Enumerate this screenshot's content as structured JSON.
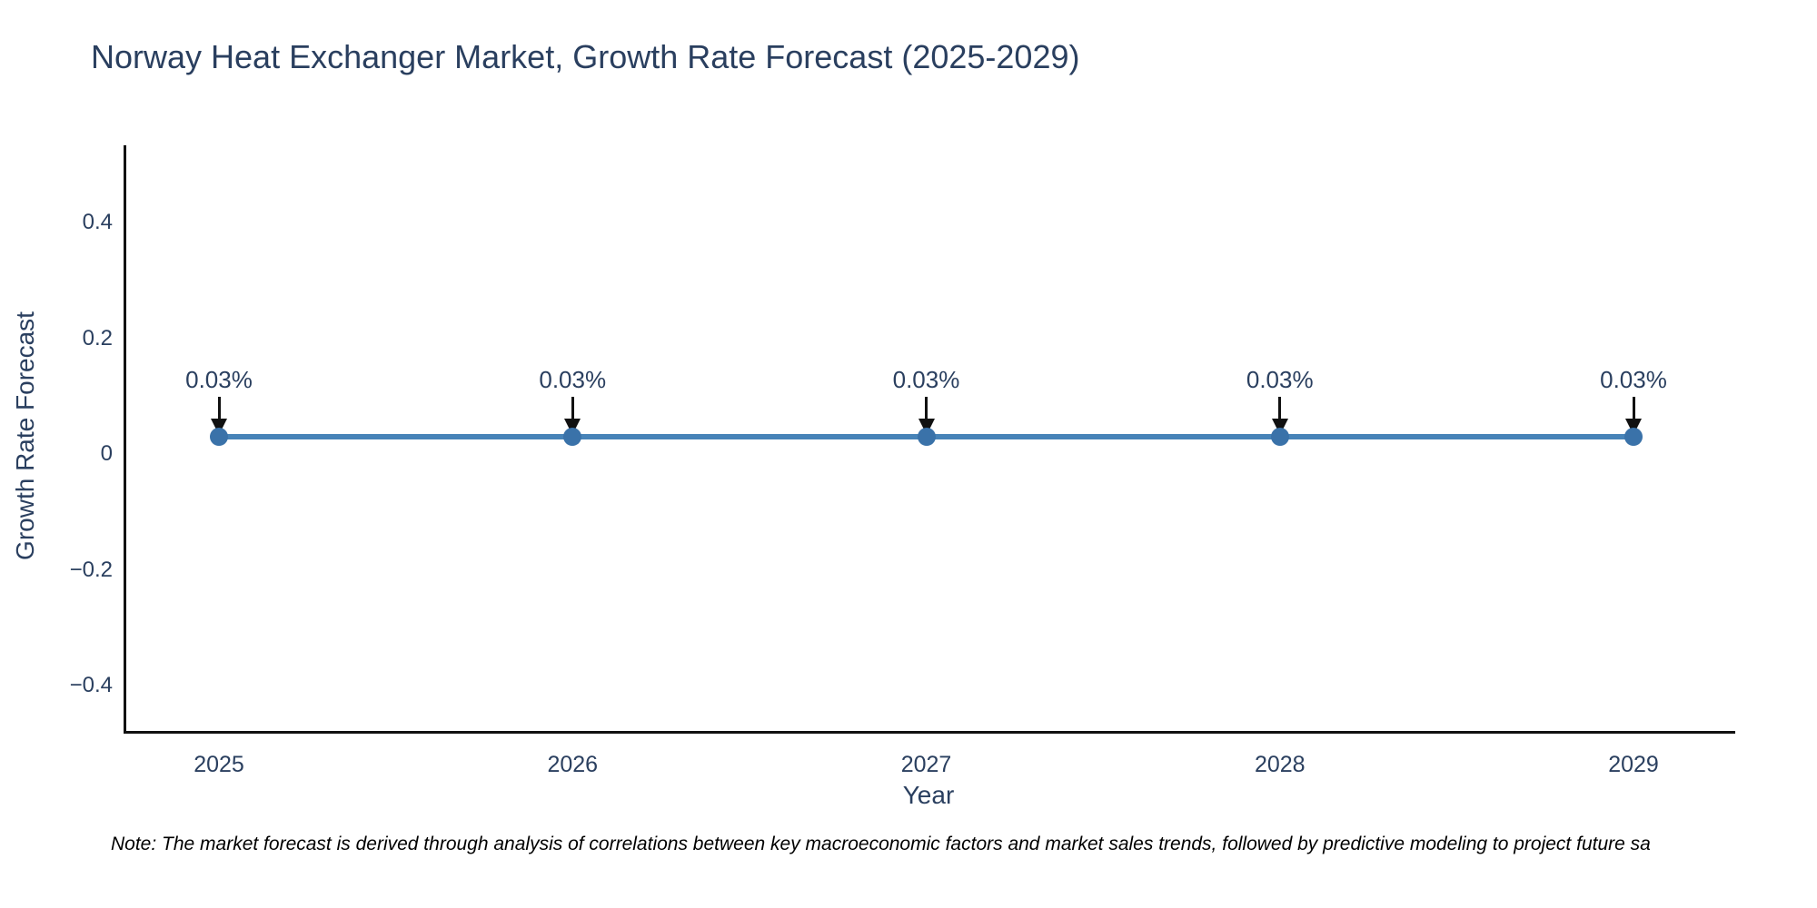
{
  "title": "Norway Heat Exchanger Market, Growth Rate Forecast (2025-2029)",
  "note": "Note: The market forecast is derived through analysis of correlations between key macroeconomic factors and market sales trends, followed by predictive modeling to project future sa",
  "axes": {
    "x_label": "Year",
    "y_label": "Growth Rate Forecast",
    "x_ticks": [
      {
        "label": "2025",
        "value": 2025
      },
      {
        "label": "2026",
        "value": 2026
      },
      {
        "label": "2027",
        "value": 2027
      },
      {
        "label": "2028",
        "value": 2028
      },
      {
        "label": "2029",
        "value": 2029
      }
    ],
    "y_ticks": [
      {
        "label": "0.4",
        "value": 0.4
      },
      {
        "label": "0.2",
        "value": 0.2
      },
      {
        "label": "0",
        "value": 0
      },
      {
        "label": "−0.2",
        "value": -0.2
      },
      {
        "label": "−0.4",
        "value": -0.4
      }
    ]
  },
  "chart_data": {
    "type": "line",
    "title": "Norway Heat Exchanger Market, Growth Rate Forecast (2025-2029)",
    "xlabel": "Year",
    "ylabel": "Growth Rate Forecast",
    "x": [
      2025,
      2026,
      2027,
      2028,
      2029
    ],
    "values": [
      0.03,
      0.03,
      0.03,
      0.03,
      0.03
    ],
    "points": [
      {
        "x": 2025,
        "y": 0.03,
        "label": "0.03%"
      },
      {
        "x": 2026,
        "y": 0.03,
        "label": "0.03%"
      },
      {
        "x": 2027,
        "y": 0.03,
        "label": "0.03%"
      },
      {
        "x": 2028,
        "y": 0.03,
        "label": "0.03%"
      },
      {
        "x": 2029,
        "y": 0.03,
        "label": "0.03%"
      }
    ],
    "ylim": [
      -0.49,
      0.54
    ],
    "yticks": [
      0.4,
      0.2,
      0,
      -0.2,
      -0.4
    ],
    "grid": false,
    "legend": "none",
    "annotations": "down-arrow to each point with percent label",
    "line_color": "#4783b8",
    "marker_color": "#3a72a9",
    "arrow_color": "#111111",
    "text_color": "#2a3f5f"
  }
}
